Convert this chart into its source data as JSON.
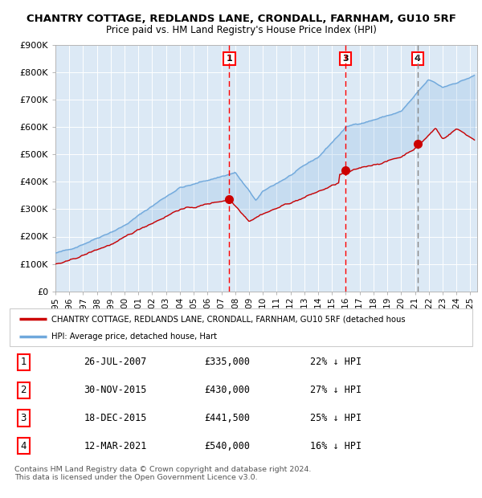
{
  "title": "CHANTRY COTTAGE, REDLANDS LANE, CRONDALL, FARNHAM, GU10 5RF",
  "subtitle": "Price paid vs. HM Land Registry's House Price Index (HPI)",
  "ylim": [
    0,
    900000
  ],
  "yticks": [
    0,
    100000,
    200000,
    300000,
    400000,
    500000,
    600000,
    700000,
    800000,
    900000
  ],
  "ytick_labels": [
    "£0",
    "£100K",
    "£200K",
    "£300K",
    "£400K",
    "£500K",
    "£600K",
    "£700K",
    "£800K",
    "£900K"
  ],
  "hpi_color": "#6fa8dc",
  "property_color": "#cc0000",
  "bg_color": "#dce9f5",
  "legend_label_property": "CHANTRY COTTAGE, REDLANDS LANE, CRONDALL, FARNHAM, GU10 5RF (detached hous",
  "legend_label_hpi": "HPI: Average price, detached house, Hart",
  "transactions": [
    {
      "num": 1,
      "date": "26-JUL-2007",
      "date_x": 2007.57,
      "price": 335000,
      "pct": "22%"
    },
    {
      "num": 2,
      "date": "30-NOV-2015",
      "date_x": 2015.92,
      "price": 430000,
      "pct": "27%"
    },
    {
      "num": 3,
      "date": "18-DEC-2015",
      "date_x": 2015.96,
      "price": 441500,
      "pct": "25%"
    },
    {
      "num": 4,
      "date": "12-MAR-2021",
      "date_x": 2021.19,
      "price": 540000,
      "pct": "16%"
    }
  ],
  "vlines_red": [
    2007.57,
    2015.96
  ],
  "vline_gray": 2021.19,
  "footer": "Contains HM Land Registry data © Crown copyright and database right 2024.\nThis data is licensed under the Open Government Licence v3.0.",
  "xmin": 1995.0,
  "xmax": 2025.5,
  "table_rows": [
    [
      "1",
      "26-JUL-2007",
      "£335,000",
      "22% ↓ HPI"
    ],
    [
      "2",
      "30-NOV-2015",
      "£430,000",
      "27% ↓ HPI"
    ],
    [
      "3",
      "18-DEC-2015",
      "£441,500",
      "25% ↓ HPI"
    ],
    [
      "4",
      "12-MAR-2021",
      "£540,000",
      "16% ↓ HPI"
    ]
  ]
}
